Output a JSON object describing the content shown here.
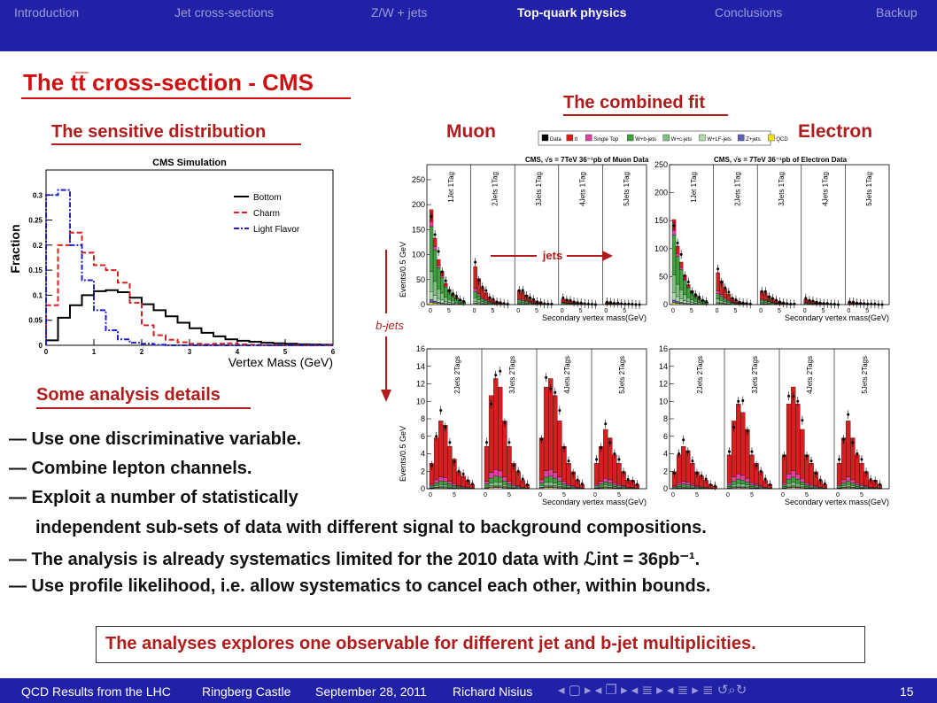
{
  "nav": {
    "items": [
      {
        "label": "Introduction",
        "active": false
      },
      {
        "label": "Jet cross-sections",
        "active": false
      },
      {
        "label": "Z/W + jets",
        "active": false
      },
      {
        "label": "Top-quark physics",
        "active": true
      },
      {
        "label": "Conclusions",
        "active": false
      },
      {
        "label": "Backup",
        "active": false
      }
    ]
  },
  "slide": {
    "title": "The tt̅ cross-section - CMS",
    "sensitive_heading": "The sensitive distribution",
    "combined_heading": "The combined fit",
    "muon_label": "Muon",
    "electron_label": "Electron",
    "details_heading": "Some analysis details",
    "bullets": [
      "— Use one discriminative variable.",
      "— Combine lepton channels.",
      "— Exploit a number of statistically",
      "independent sub-sets of data with different signal to background compositions.",
      "— The analysis is already systematics limited for the 2010 data with ℒint = 36pb⁻¹.",
      "— Use profile likelihood, i.e. allow systematics to cancel each other, within bounds."
    ],
    "box_text": "The analyses explores one observable for different jet and b-jet multiplicities."
  },
  "footer": {
    "talk": "QCD Results from the LHC",
    "venue": "Ringberg Castle",
    "date": "September 28, 2011",
    "author": "Richard Nisius",
    "page": "15",
    "nav_symbols": "◂ ▢ ▸  ◂ ❐ ▸  ◂ ≣ ▸  ◂ ≣ ▸   ≣   ↺⌕↻"
  },
  "chart_data": [
    {
      "type": "line",
      "title": "CMS Simulation",
      "xlabel": "Vertex Mass (GeV)",
      "ylabel": "Fraction",
      "xlim": [
        0,
        6
      ],
      "ylim": [
        0,
        0.35
      ],
      "x_ticks": [
        "0",
        "1",
        "2",
        "3",
        "4",
        "5",
        "6"
      ],
      "y_ticks": [
        "0",
        "0.05",
        "0.1",
        "0.15",
        "0.2",
        "0.25",
        "0.3"
      ],
      "legend_position": "top-right",
      "bin_edges": [
        0,
        0.25,
        0.5,
        0.75,
        1.0,
        1.25,
        1.5,
        1.75,
        2.0,
        2.25,
        2.5,
        2.75,
        3.0,
        3.25,
        3.5,
        3.75,
        4.0,
        4.25,
        4.5,
        4.75,
        5.0,
        5.25,
        5.5,
        5.75,
        6.0
      ],
      "series": [
        {
          "name": "Bottom",
          "color": "#000000",
          "style": "solid",
          "values": [
            0.01,
            0.055,
            0.08,
            0.1,
            0.108,
            0.11,
            0.106,
            0.095,
            0.082,
            0.07,
            0.058,
            0.045,
            0.034,
            0.025,
            0.018,
            0.012,
            0.009,
            0.007,
            0.005,
            0.004,
            0.003,
            0.002,
            0.0015,
            0.001
          ]
        },
        {
          "name": "Charm",
          "color": "#d42020",
          "style": "dashed",
          "values": [
            0.08,
            0.2,
            0.225,
            0.185,
            0.16,
            0.15,
            0.125,
            0.085,
            0.04,
            0.02,
            0.011,
            0.006,
            0.003,
            0.002,
            0.003,
            0.004,
            0.002,
            0.001,
            0.0005,
            0,
            0,
            0,
            0,
            0
          ]
        },
        {
          "name": "Light Flavor",
          "color": "#2020c8",
          "style": "dotdash",
          "values": [
            0.3,
            0.31,
            0.2,
            0.13,
            0.07,
            0.03,
            0.012,
            0.005,
            0.003,
            0.001,
            0,
            0,
            0,
            0,
            0,
            0,
            0,
            0,
            0,
            0,
            0,
            0,
            0,
            0
          ]
        }
      ]
    },
    {
      "type": "bar",
      "title": "CMS, √s = 7TeV 36⁻¹pb of Muon Data / Electron Data (1 Tag and 2 Tags)",
      "xlabel": "Secondary vertex mass(GeV)",
      "ylabel": "Events/0.5 GeV",
      "legend": [
        "Data",
        "tt",
        "Single Top",
        "W+b-jets",
        "W+c-jets",
        "W+LF-jets",
        "Z+jets",
        "QCD"
      ],
      "legend_colors": [
        "#000000",
        "#d42020",
        "#e040a0",
        "#40a040",
        "#80c080",
        "#b0d8b0",
        "#6060c0",
        "#f0e020"
      ],
      "annotations": [
        "jets",
        "b-jets"
      ],
      "panels": [
        {
          "name": "Muon 1 Tag",
          "ylim": [
            0,
            280
          ],
          "y_ticks": [
            "0",
            "50",
            "100",
            "150",
            "200",
            "250"
          ],
          "regions": [
            "1Jet 1Tag",
            "2Jets 1Tag",
            "3Jets 1Tag",
            "4Jets 1Tag",
            "5Jets 1Tag"
          ],
          "region_totals": [
            [
              200,
              140,
              95,
              70,
              45,
              32,
              22,
              15,
              10,
              6
            ],
            [
              80,
              55,
              35,
              25,
              15,
              10,
              6,
              4,
              2,
              1
            ],
            [
              30,
              27,
              20,
              14,
              9,
              6,
              4,
              2,
              1,
              1
            ],
            [
              12,
              10,
              8,
              6,
              4,
              3,
              2,
              1,
              1,
              0
            ],
            [
              5,
              4,
              3,
              3,
              2,
              1,
              1,
              1,
              0,
              0
            ]
          ]
        },
        {
          "name": "Electron 1 Tag",
          "ylim": [
            0,
            250
          ],
          "y_ticks": [
            "0",
            "50",
            "100",
            "150",
            "200",
            "250"
          ],
          "regions": [
            "1Jet 1Tag",
            "2Jets 1Tag",
            "3Jets 1Tag",
            "4Jets 1Tag",
            "5Jets 1Tag"
          ],
          "region_totals": [
            [
              160,
              110,
              80,
              55,
              38,
              26,
              18,
              12,
              8,
              5
            ],
            [
              60,
              45,
              30,
              20,
              12,
              8,
              5,
              3,
              2,
              1
            ],
            [
              25,
              22,
              16,
              11,
              7,
              5,
              3,
              2,
              1,
              1
            ],
            [
              10,
              8,
              6,
              5,
              3,
              2,
              2,
              1,
              1,
              0
            ],
            [
              5,
              4,
              3,
              2,
              2,
              1,
              1,
              1,
              0,
              0
            ]
          ]
        },
        {
          "name": "Muon 2 Tags",
          "ylim": [
            0,
            16
          ],
          "y_ticks": [
            "0",
            "2",
            "4",
            "6",
            "8",
            "10",
            "12",
            "14",
            "16"
          ],
          "regions": [
            "2Jets 2Tags",
            "3Jets 2Tags",
            "4Jets 2Tags",
            "5Jets 2Tags"
          ],
          "region_totals": [
            [
              3,
              6,
              8,
              7.5,
              5,
              3.5,
              2,
              1.5,
              1,
              0.5
            ],
            [
              5,
              11,
              13,
              12,
              8,
              5,
              3,
              2,
              1,
              0.5
            ],
            [
              6,
              12,
              13,
              11,
              8,
              5,
              3,
              2,
              1,
              0.5
            ],
            [
              3,
              5,
              7,
              6,
              4,
              3,
              2,
              1,
              1,
              0.5
            ]
          ]
        },
        {
          "name": "Electron 2 Tags",
          "ylim": [
            0,
            16
          ],
          "y_ticks": [
            "0",
            "2",
            "4",
            "6",
            "8",
            "10",
            "12",
            "14",
            "16"
          ],
          "regions": [
            "2Jets 2Tags",
            "3Jets 2Tags",
            "4Jets 2Tags",
            "5Jets 2Tags"
          ],
          "region_totals": [
            [
              2,
              4,
              5,
              4.5,
              3,
              2,
              1.5,
              1,
              0.5,
              0.3
            ],
            [
              4,
              8,
              10,
              9,
              7,
              4,
              3,
              2,
              1,
              0.5
            ],
            [
              4,
              10,
              12,
              10,
              7,
              4,
              3,
              2,
              1,
              0.5
            ],
            [
              3,
              6,
              8,
              6,
              4,
              3,
              2,
              1,
              1,
              0.5
            ]
          ]
        }
      ]
    }
  ]
}
